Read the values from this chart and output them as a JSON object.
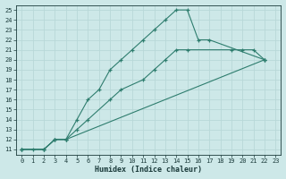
{
  "xlabel": "Humidex (Indice chaleur)",
  "bg_color": "#cde8e8",
  "line_color": "#2e7d6e",
  "grid_color": "#b8d8d8",
  "xlim": [
    -0.5,
    23.5
  ],
  "ylim": [
    10.5,
    25.5
  ],
  "xticks": [
    0,
    1,
    2,
    3,
    4,
    5,
    6,
    7,
    8,
    9,
    10,
    11,
    12,
    13,
    14,
    15,
    16,
    17,
    18,
    19,
    20,
    21,
    22,
    23
  ],
  "yticks": [
    11,
    12,
    13,
    14,
    15,
    16,
    17,
    18,
    19,
    20,
    21,
    22,
    23,
    24,
    25
  ],
  "line1_x": [
    0,
    1,
    2,
    3,
    4,
    5,
    6,
    7,
    8,
    9,
    10,
    11,
    12,
    13,
    14,
    15,
    16,
    17,
    22
  ],
  "line1_y": [
    11,
    11,
    11,
    12,
    12,
    14,
    16,
    17,
    19,
    20,
    21,
    22,
    23,
    24,
    25,
    25,
    22,
    22,
    20
  ],
  "line2_x": [
    0,
    2,
    3,
    4,
    5,
    6,
    8,
    9,
    11,
    12,
    13,
    14,
    15,
    19,
    20,
    21,
    22
  ],
  "line2_y": [
    11,
    11,
    12,
    12,
    13,
    14,
    16,
    17,
    18,
    19,
    20,
    21,
    21,
    21,
    21,
    21,
    20
  ],
  "line3_x": [
    0,
    2,
    3,
    4,
    22
  ],
  "line3_y": [
    11,
    11,
    12,
    12,
    20
  ]
}
